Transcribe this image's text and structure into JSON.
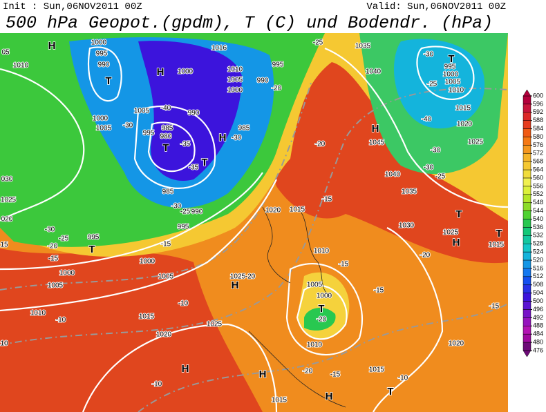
{
  "header": {
    "init": "Init : Sun,06NOV2011 00Z",
    "valid": "Valid: Sun,06NOV2011 00Z",
    "title": "500 hPa Geopot.(gpdm), T (C) und Bodendr. (hPa)"
  },
  "colorbar": {
    "ticks": [
      600,
      596,
      592,
      588,
      584,
      580,
      576,
      572,
      568,
      564,
      560,
      556,
      552,
      548,
      544,
      540,
      536,
      532,
      528,
      524,
      520,
      516,
      512,
      508,
      504,
      500,
      496,
      492,
      488,
      484,
      480,
      476
    ],
    "colors": [
      "#b4003c",
      "#c8143c",
      "#dc2828",
      "#e63c1e",
      "#f05a14",
      "#f57814",
      "#f5961e",
      "#f5b428",
      "#f5c832",
      "#f0dc3c",
      "#f0f050",
      "#dcf03c",
      "#b4e628",
      "#8cdc28",
      "#50d232",
      "#28c850",
      "#14c878",
      "#14c8a0",
      "#14c8c8",
      "#14b4dc",
      "#1496e6",
      "#1478f0",
      "#1450f0",
      "#2832e6",
      "#3c14dc",
      "#5a14d2",
      "#7814c8",
      "#9614be",
      "#b414b4",
      "#a00aa0",
      "#6e0a78"
    ]
  },
  "map": {
    "labels": [
      "H",
      "T",
      "1000",
      "995",
      "990",
      "1010",
      "05",
      "1000",
      "1005",
      "-30",
      "H",
      "1000",
      "1016",
      "1010",
      "1005",
      "1000",
      "995",
      "990",
      "-20",
      "-40",
      "1005",
      "990",
      "985",
      "980",
      "995",
      "-35",
      "T",
      "H",
      "-30",
      "985",
      "T",
      "-35",
      "985",
      "-30",
      "-25",
      "990",
      "995",
      "-30",
      "-25",
      "-20",
      "995",
      "T",
      "-15",
      "1000",
      "-15",
      "1000",
      "1005",
      "1005",
      "1010",
      "-10",
      "-10",
      "1015",
      "1025",
      "1020",
      "H",
      "-10",
      "1025",
      "020",
      "15",
      "030",
      "-25",
      "1035",
      "1040",
      "1045",
      "H",
      "-20",
      "1040",
      "1035",
      "T",
      "995",
      "1000",
      "1005",
      "1010",
      "-30",
      "-25",
      "1015",
      "1020",
      "1025",
      "-40",
      "-30",
      "-30",
      "-25",
      "T",
      "H",
      "1025",
      "1030",
      "-20",
      "1015",
      "T",
      "-15",
      "1020",
      "1020",
      "1015",
      "-15",
      "-15",
      "-15",
      "1005",
      "1000",
      "T",
      "-20",
      "1010",
      "1010",
      "1025",
      "H",
      "-20",
      "-20",
      "-15",
      "1015",
      "-10",
      "T",
      "H",
      "H",
      "1015",
      "10"
    ]
  }
}
